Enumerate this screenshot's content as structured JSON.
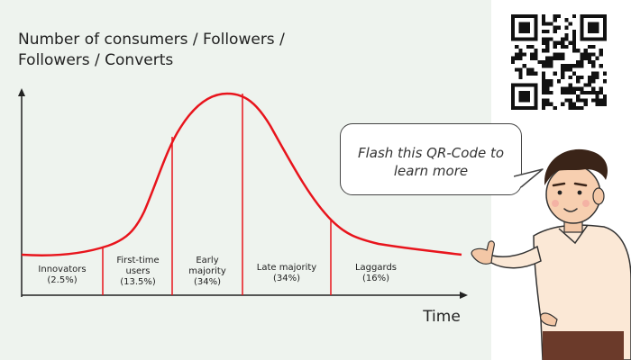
{
  "title": {
    "line1": "Number of consumers / Followers /",
    "line2": "Followers / Converts"
  },
  "x_axis_label": "Time",
  "segments": [
    {
      "line1": "Innovators",
      "line2": "(2.5%)",
      "percent": 2.5
    },
    {
      "line1": "First-time",
      "line2": "users",
      "line3": "(13.5%)",
      "percent": 13.5
    },
    {
      "line1": "Early",
      "line2": "majority",
      "line3": "(34%)",
      "percent": 34
    },
    {
      "line1": "Late majority",
      "line2": "(34%)",
      "percent": 34
    },
    {
      "line1": "Laggards",
      "line2": "(16%)",
      "percent": 16
    }
  ],
  "bubble": {
    "line1": "Flash this QR-Code to",
    "line2": "learn more"
  },
  "colors": {
    "curve": "#e8141c",
    "background_left": "#eef3ee",
    "background_right": "#ffffff",
    "axis": "#222222"
  },
  "icons": [
    "qr-code-icon",
    "person-illustration"
  ]
}
